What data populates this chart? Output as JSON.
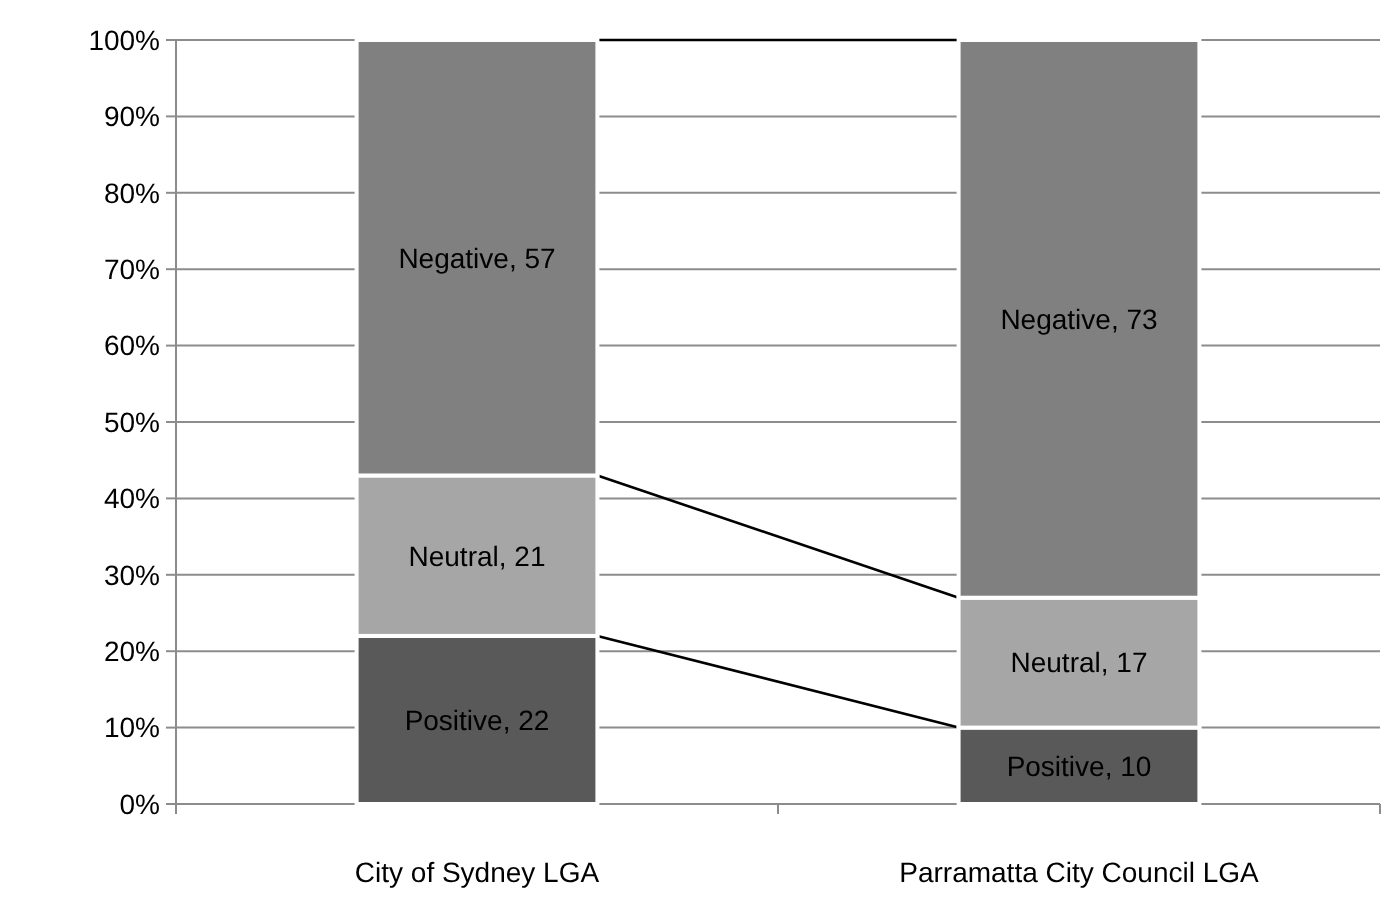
{
  "chart_data": {
    "type": "bar",
    "stacked": true,
    "categories": [
      "City of Sydney LGA",
      "Parramatta City Council LGA"
    ],
    "series": [
      {
        "color": "#595959",
        "values": [
          22,
          10
        ],
        "value_labels": [
          "Positive, 22",
          "Positive, 10"
        ]
      },
      {
        "color": "#a6a6a6",
        "values": [
          21,
          17
        ],
        "value_labels": [
          "Neutral, 21",
          "Neutral, 17"
        ]
      },
      {
        "color": "#808080",
        "values": [
          57,
          73
        ],
        "value_labels": [
          "Negative, 57",
          "Negative, 73"
        ]
      }
    ],
    "ylim": [
      0,
      100
    ],
    "yticks": [
      {
        "value": 0,
        "label": "0%"
      },
      {
        "value": 10,
        "label": "10%"
      },
      {
        "value": 20,
        "label": "20%"
      },
      {
        "value": 30,
        "label": "30%"
      },
      {
        "value": 40,
        "label": "40%"
      },
      {
        "value": 50,
        "label": "50%"
      },
      {
        "value": 60,
        "label": "60%"
      },
      {
        "value": 70,
        "label": "70%"
      },
      {
        "value": 80,
        "label": "80%"
      },
      {
        "value": 90,
        "label": "90%"
      },
      {
        "value": 100,
        "label": "100%"
      }
    ],
    "grid": "y"
  }
}
